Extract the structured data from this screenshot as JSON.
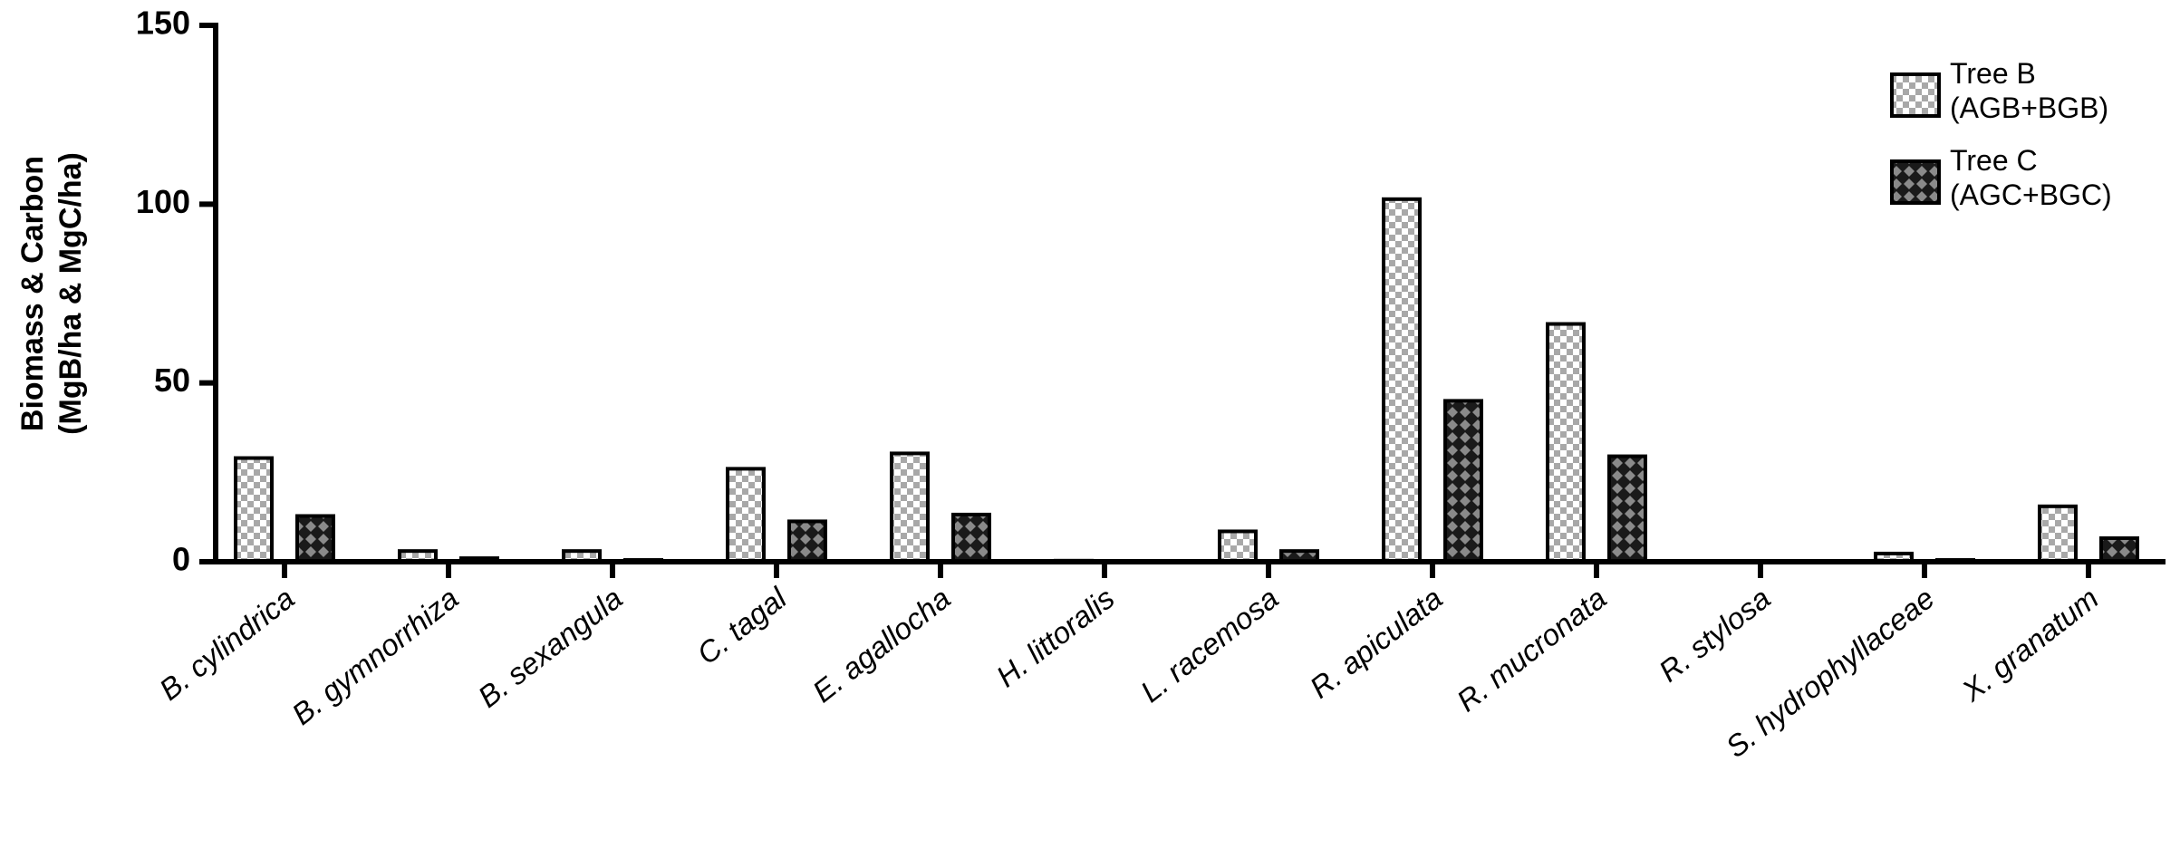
{
  "chart_data": {
    "type": "bar",
    "y_label": [
      "Biomass & Carbon",
      "(MgB/ha & MgC/ha)"
    ],
    "categories": [
      "B. cylindrica",
      "B. gymnorrhiza",
      "B. sexangula",
      "C. tagal",
      "E. agallocha",
      "H. littoralis",
      "L. racemosa",
      "R. apiculata",
      "R. mucronata",
      "R. stylosa",
      "S. hydrophyllaceae",
      "X. granatum"
    ],
    "series": [
      {
        "name": "Tree B\n(AGB+BGB)",
        "color": "#a8a8a8",
        "pattern": "checker",
        "values": [
          29,
          3,
          3,
          26,
          30.3,
          0.3,
          8.5,
          101.4,
          66.5,
          0,
          2.3,
          15.5
        ]
      },
      {
        "name": "Tree C\n(AGC+BGC)",
        "color": "#1a1a1a",
        "pattern": "diamond",
        "values": [
          12.8,
          1,
          0.5,
          11.3,
          13.2,
          0,
          3,
          45,
          29.5,
          0,
          0.5,
          6.6
        ]
      }
    ],
    "ylim": [
      0,
      150
    ],
    "yticks": [
      0,
      50,
      100,
      150
    ],
    "grid": false,
    "legend": "top-right"
  }
}
